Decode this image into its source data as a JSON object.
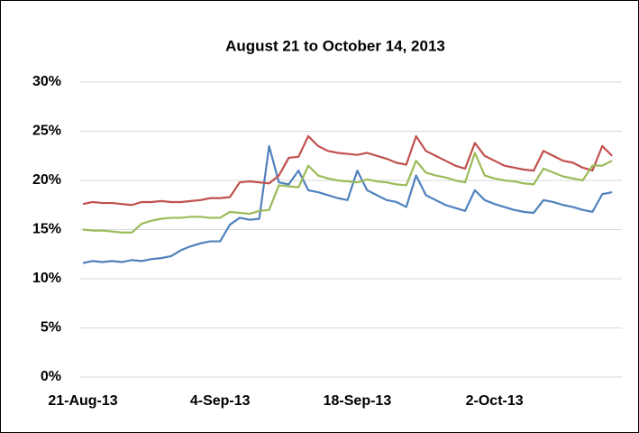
{
  "chart_data": {
    "type": "line",
    "title": "August 21 to October 14, 2013",
    "x": [
      "2013-08-21",
      "2013-08-22",
      "2013-08-23",
      "2013-08-24",
      "2013-08-25",
      "2013-08-26",
      "2013-08-27",
      "2013-08-28",
      "2013-08-29",
      "2013-08-30",
      "2013-08-31",
      "2013-09-01",
      "2013-09-02",
      "2013-09-03",
      "2013-09-04",
      "2013-09-05",
      "2013-09-06",
      "2013-09-07",
      "2013-09-08",
      "2013-09-09",
      "2013-09-10",
      "2013-09-11",
      "2013-09-12",
      "2013-09-13",
      "2013-09-14",
      "2013-09-15",
      "2013-09-16",
      "2013-09-17",
      "2013-09-18",
      "2013-09-19",
      "2013-09-20",
      "2013-09-21",
      "2013-09-22",
      "2013-09-23",
      "2013-09-24",
      "2013-09-25",
      "2013-09-26",
      "2013-09-27",
      "2013-09-28",
      "2013-09-29",
      "2013-09-30",
      "2013-10-01",
      "2013-10-02",
      "2013-10-03",
      "2013-10-04",
      "2013-10-05",
      "2013-10-06",
      "2013-10-07",
      "2013-10-08",
      "2013-10-09",
      "2013-10-10",
      "2013-10-11",
      "2013-10-12",
      "2013-10-13",
      "2013-10-14"
    ],
    "series": [
      {
        "color": "#4f81bd",
        "values": [
          11.6,
          11.8,
          11.7,
          11.8,
          11.7,
          11.9,
          11.8,
          12.0,
          12.1,
          12.3,
          12.9,
          13.3,
          13.6,
          13.8,
          13.8,
          15.5,
          16.2,
          16.0,
          16.1,
          23.5,
          19.8,
          19.6,
          21.0,
          19.0,
          18.8,
          18.5,
          18.2,
          18.0,
          21.0,
          19.0,
          18.5,
          18.0,
          17.8,
          17.3,
          20.5,
          18.5,
          18.0,
          17.5,
          17.2,
          16.9,
          19.0,
          18.0,
          17.6,
          17.3,
          17.0,
          16.8,
          16.7,
          18.0,
          17.8,
          17.5,
          17.3,
          17.0,
          16.8,
          18.6,
          18.8
        ]
      },
      {
        "color": "#c0504d",
        "values": [
          17.6,
          17.8,
          17.7,
          17.7,
          17.6,
          17.5,
          17.8,
          17.8,
          17.9,
          17.8,
          17.8,
          17.9,
          18.0,
          18.2,
          18.2,
          18.3,
          19.8,
          19.9,
          19.8,
          19.7,
          20.5,
          22.3,
          22.4,
          24.5,
          23.5,
          23.0,
          22.8,
          22.7,
          22.6,
          22.8,
          22.5,
          22.2,
          21.8,
          21.6,
          24.5,
          23.0,
          22.5,
          22.0,
          21.5,
          21.2,
          23.8,
          22.5,
          22.0,
          21.5,
          21.3,
          21.1,
          21.0,
          23.0,
          22.5,
          22.0,
          21.8,
          21.3,
          21.0,
          23.5,
          22.5
        ]
      },
      {
        "color": "#9bbb59",
        "values": [
          15.0,
          14.9,
          14.9,
          14.8,
          14.7,
          14.7,
          15.6,
          15.9,
          16.1,
          16.2,
          16.2,
          16.3,
          16.3,
          16.2,
          16.2,
          16.8,
          16.7,
          16.6,
          16.9,
          17.0,
          19.5,
          19.4,
          19.3,
          21.5,
          20.5,
          20.2,
          20.0,
          19.9,
          19.8,
          20.1,
          19.9,
          19.8,
          19.6,
          19.5,
          22.0,
          20.8,
          20.5,
          20.3,
          20.0,
          19.8,
          22.8,
          20.5,
          20.2,
          20.0,
          19.9,
          19.7,
          19.6,
          21.2,
          20.8,
          20.4,
          20.2,
          20.0,
          21.5,
          21.5,
          22.0
        ]
      }
    ],
    "xlim": [
      "2013-08-21",
      "2013-10-15"
    ],
    "xticks": [
      {
        "value": "2013-08-21",
        "label": "21-Aug-13"
      },
      {
        "value": "2013-09-04",
        "label": "4-Sep-13"
      },
      {
        "value": "2013-09-18",
        "label": "18-Sep-13"
      },
      {
        "value": "2013-10-02",
        "label": "2-Oct-13"
      }
    ],
    "ylim": [
      0,
      30
    ],
    "yticks": [
      {
        "value": 0,
        "label": "0%"
      },
      {
        "value": 5,
        "label": "5%"
      },
      {
        "value": 10,
        "label": "10%"
      },
      {
        "value": 15,
        "label": "15%"
      },
      {
        "value": 20,
        "label": "20%"
      },
      {
        "value": 25,
        "label": "25%"
      },
      {
        "value": 30,
        "label": "30%"
      }
    ],
    "grid": true
  }
}
